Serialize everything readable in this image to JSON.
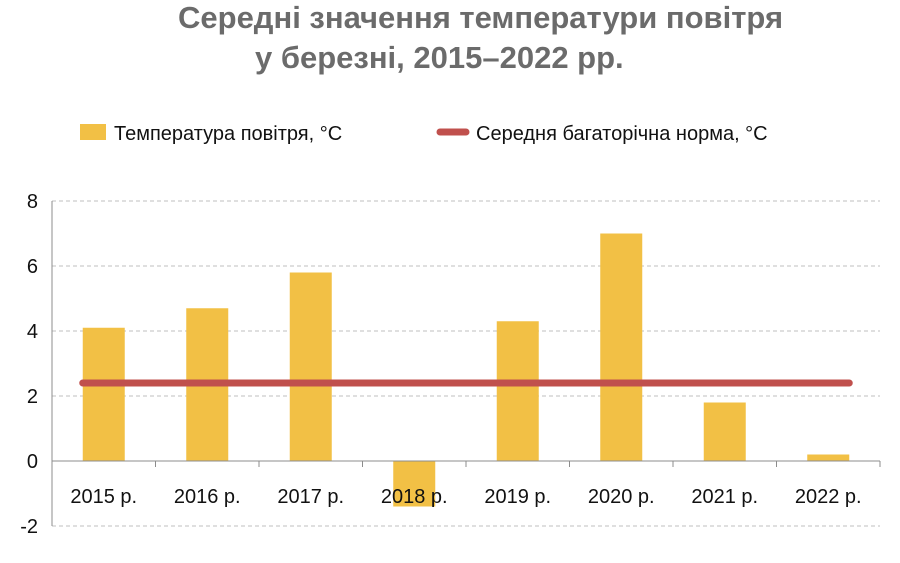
{
  "chart_data": {
    "type": "bar",
    "title_line1": "Середні значення температури повітря",
    "title_line2": "у березні, 2015–2022 рр.",
    "categories": [
      "2015  р.",
      "2016 р.",
      "2017 р.",
      "2018 р.",
      "2019 р.",
      "2020 р.",
      "2021 р.",
      "2022 р."
    ],
    "series": [
      {
        "name": "Температура повітря, °С",
        "type": "bar",
        "color": "#f2c045",
        "values": [
          4.1,
          4.7,
          5.8,
          -1.4,
          4.3,
          7.0,
          1.8,
          0.2
        ]
      },
      {
        "name": "Середня багаторічна норма, °С",
        "type": "line",
        "color": "#c0504d",
        "values": [
          2.4,
          2.4,
          2.4,
          2.4,
          2.4,
          2.4,
          2.4,
          2.4
        ]
      }
    ],
    "ylim": [
      -2,
      8
    ],
    "yticks": [
      "-2",
      "0",
      "2",
      "4",
      "6",
      "8"
    ],
    "grid": true,
    "legend_position": "top"
  }
}
